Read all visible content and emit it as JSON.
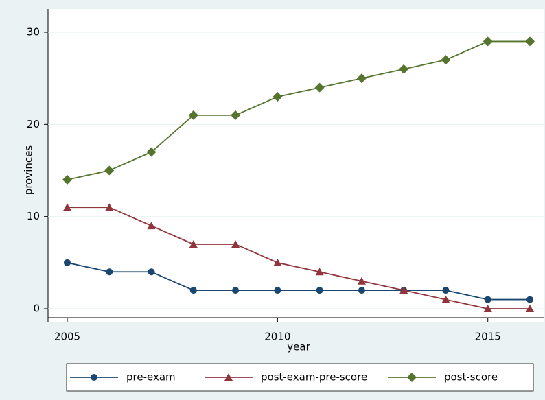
{
  "chart_data": {
    "type": "line",
    "x_label": "year",
    "y_label": "provinces",
    "x": [
      2005,
      2006,
      2007,
      2008,
      2009,
      2010,
      2011,
      2012,
      2013,
      2014,
      2015,
      2016
    ],
    "series": [
      {
        "name": "pre-exam",
        "color": "#1a476f",
        "marker": "circle",
        "values": [
          5,
          4,
          4,
          2,
          2,
          2,
          2,
          2,
          2,
          2,
          1,
          1
        ]
      },
      {
        "name": "post-exam-pre-score",
        "color": "#90353b",
        "marker": "triangle",
        "values": [
          11,
          11,
          9,
          7,
          7,
          5,
          4,
          3,
          2,
          1,
          0,
          0
        ]
      },
      {
        "name": "post-score",
        "color": "#55752f",
        "marker": "diamond",
        "values": [
          14,
          15,
          17,
          21,
          21,
          23,
          24,
          25,
          26,
          27,
          29,
          29
        ]
      }
    ],
    "xlim": [
      2005,
      2016
    ],
    "xticks": [
      2005,
      2010,
      2015
    ],
    "ylim": [
      0,
      30
    ],
    "yticks": [
      0,
      10,
      20,
      30
    ],
    "grid": true,
    "legend": "bottom"
  }
}
